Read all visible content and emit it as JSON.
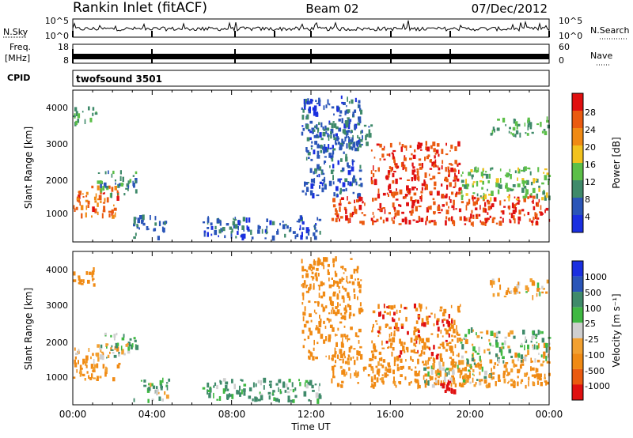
{
  "header": {
    "station": "Rankin Inlet (fitACF)",
    "beam": "Beam 02",
    "date": "07/Dec/2012"
  },
  "nsky_panel": {
    "left_label": "N.Sky",
    "left_ticks": [
      "10^5",
      "10^0"
    ],
    "right_ticks": [
      "10^5",
      "10^0"
    ],
    "right_label": "N.Search"
  },
  "freq_panel": {
    "left_label_1": "Freq.",
    "left_label_2": "[MHz]",
    "left_ticks": [
      "18",
      "8"
    ],
    "right_ticks": [
      "60",
      "0"
    ],
    "right_label": "Nave"
  },
  "cpid_panel": {
    "left_label": "CPID",
    "mode": "twofsound 3501"
  },
  "colors": {
    "power_scale": [
      "#1a2fe0",
      "#2a55b8",
      "#3f8a6a",
      "#5cbf48",
      "#f2c21e",
      "#f08a14",
      "#ea5a10",
      "#e01010"
    ],
    "velocity_scale": [
      "#e01010",
      "#ea5a10",
      "#f08a14",
      "#f2a030",
      "#cfcfcf",
      "#3fb842",
      "#3f8a6a",
      "#2a55b8",
      "#1a2fe0"
    ]
  },
  "chart_data": [
    {
      "type": "heatmap",
      "name": "power",
      "ylabel": "Slant Range [km]",
      "yticks": [
        "1000",
        "2000",
        "3000",
        "4000"
      ],
      "ylim": [
        200,
        4500
      ],
      "xlim_hours": [
        0,
        24
      ],
      "colorbar_label": "Power [dB]",
      "colorbar_ticks": [
        "4",
        "8",
        "12",
        "16",
        "20",
        "24",
        "28"
      ],
      "colorbar_range": [
        0,
        32
      ],
      "blobs": [
        {
          "t": [
            0.0,
            2.3
          ],
          "r": [
            900,
            1800
          ],
          "v": 25
        },
        {
          "t": [
            1.2,
            3.2
          ],
          "r": [
            1500,
            2200
          ],
          "v": 10
        },
        {
          "t": [
            0.0,
            1.2
          ],
          "r": [
            3500,
            4000
          ],
          "v": 12
        },
        {
          "t": [
            3.0,
            4.8
          ],
          "r": [
            300,
            900
          ],
          "v": 8
        },
        {
          "t": [
            6.5,
            12.5
          ],
          "r": [
            300,
            900
          ],
          "v": 6
        },
        {
          "t": [
            11.5,
            14.5
          ],
          "r": [
            1500,
            4300
          ],
          "v": 6
        },
        {
          "t": [
            12.0,
            15.0
          ],
          "r": [
            2800,
            3600
          ],
          "v": 8
        },
        {
          "t": [
            13.0,
            24.0
          ],
          "r": [
            700,
            1500
          ],
          "v": 28
        },
        {
          "t": [
            15.0,
            19.5
          ],
          "r": [
            1500,
            3000
          ],
          "v": 28
        },
        {
          "t": [
            19.5,
            24.0
          ],
          "r": [
            1400,
            2300
          ],
          "v": 14
        },
        {
          "t": [
            21.0,
            24.0
          ],
          "r": [
            3200,
            3700
          ],
          "v": 12
        }
      ]
    },
    {
      "type": "heatmap",
      "name": "velocity",
      "ylabel": "Slant Range [km]",
      "yticks": [
        "1000",
        "2000",
        "3000",
        "4000"
      ],
      "ylim": [
        200,
        4500
      ],
      "xlim_hours": [
        0,
        24
      ],
      "xticks": [
        "00:00",
        "04:00",
        "08:00",
        "12:00",
        "16:00",
        "20:00",
        "00:00"
      ],
      "xlabel": "Time UT",
      "colorbar_label": "Velocity [m s⁻¹]",
      "colorbar_ticks": [
        "1000",
        "500",
        "100",
        "25",
        "-25",
        "-100",
        "-500",
        "-1000"
      ],
      "blobs": [
        {
          "t": [
            0.0,
            2.3
          ],
          "r": [
            900,
            1800
          ],
          "v": -150
        },
        {
          "t": [
            1.2,
            3.2
          ],
          "r": [
            1500,
            2200
          ],
          "v": 80
        },
        {
          "t": [
            0.0,
            1.2
          ],
          "r": [
            3500,
            4000
          ],
          "v": -300
        },
        {
          "t": [
            3.0,
            4.8
          ],
          "r": [
            300,
            900
          ],
          "v": 60
        },
        {
          "t": [
            6.5,
            12.5
          ],
          "r": [
            300,
            900
          ],
          "v": 150
        },
        {
          "t": [
            11.5,
            14.5
          ],
          "r": [
            1500,
            4300
          ],
          "v": -300
        },
        {
          "t": [
            13.0,
            24.0
          ],
          "r": [
            700,
            1500
          ],
          "v": -200
        },
        {
          "t": [
            15.0,
            19.5
          ],
          "r": [
            1500,
            3000
          ],
          "v": -400
        },
        {
          "t": [
            17.5,
            21.0
          ],
          "r": [
            700,
            1400
          ],
          "v": 0
        },
        {
          "t": [
            18.5,
            19.2
          ],
          "r": [
            400,
            1000
          ],
          "v": -900
        },
        {
          "t": [
            19.5,
            24.0
          ],
          "r": [
            1400,
            2300
          ],
          "v": 30
        },
        {
          "t": [
            21.0,
            24.0
          ],
          "r": [
            3200,
            3700
          ],
          "v": -100
        }
      ]
    }
  ]
}
